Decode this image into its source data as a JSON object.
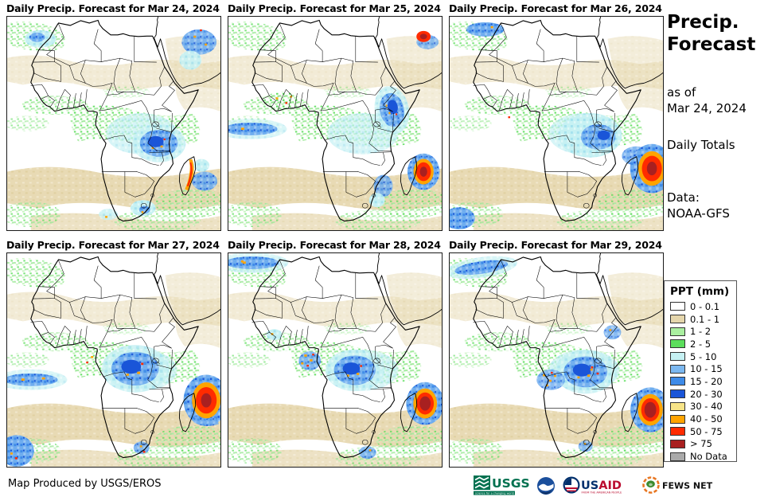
{
  "panels": [
    {
      "id": "mar24",
      "title": "Daily Precip. Forecast for Mar 24, 2024"
    },
    {
      "id": "mar25",
      "title": "Daily Precip. Forecast for Mar 25, 2024"
    },
    {
      "id": "mar26",
      "title": "Daily Precip. Forecast for Mar 26, 2024"
    },
    {
      "id": "mar27",
      "title": "Daily Precip. Forecast for Mar 27, 2024"
    },
    {
      "id": "mar28",
      "title": "Daily Precip. Forecast for Mar 28, 2024"
    },
    {
      "id": "mar29",
      "title": "Daily Precip. Forecast for Mar 29, 2024"
    }
  ],
  "sidebar": {
    "title_line1": "Precip.",
    "title_line2": "Forecast",
    "as_of_label": "as of",
    "as_of_date": "Mar 24, 2024",
    "totals_label": "Daily Totals",
    "data_label": "Data:",
    "data_source": "NOAA-GFS"
  },
  "legend": {
    "title": "PPT (mm)",
    "items": [
      {
        "label": "0 - 0.1",
        "color": "#FFFFFF"
      },
      {
        "label": "0.1 - 1",
        "color": "#E5D6AC"
      },
      {
        "label": "1 - 2",
        "color": "#AAEFA0"
      },
      {
        "label": "2 - 5",
        "color": "#5CDE5C"
      },
      {
        "label": "5 - 10",
        "color": "#C6F1F3"
      },
      {
        "label": "10 - 15",
        "color": "#7CB8F0"
      },
      {
        "label": "15 - 20",
        "color": "#3E8BE8"
      },
      {
        "label": "20 - 30",
        "color": "#1A55D8"
      },
      {
        "label": "30 - 40",
        "color": "#F7E488"
      },
      {
        "label": "40 - 50",
        "color": "#FFA400"
      },
      {
        "label": "50 - 75",
        "color": "#FF2B00"
      },
      {
        "label": "> 75",
        "color": "#A82020"
      },
      {
        "label": "No Data",
        "color": "#AAAAAA"
      }
    ]
  },
  "footer": {
    "attribution": "Map Produced by USGS/EROS",
    "usgs_label": "USGS",
    "usgs_tagline": "science for a changing world",
    "usaid_us": "US",
    "usaid_aid": "AID",
    "usaid_tagline": "FROM THE AMERICAN PEOPLE",
    "fewsnet_label": "FEWS NET"
  }
}
